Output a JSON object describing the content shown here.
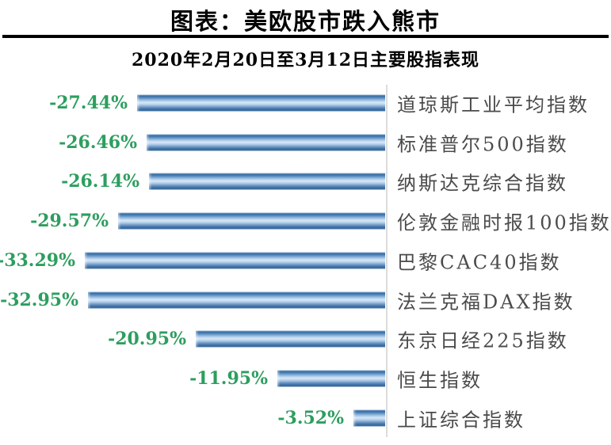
{
  "header": {
    "title": "图表：美欧股市跌入熊市",
    "subtitle": "2020年2月20日至3月12日主要股指表现"
  },
  "chart_data": {
    "type": "bar",
    "orientation": "horizontal",
    "title": "2020年2月20日至3月12日主要股指表现",
    "categories": [
      "道琼斯工业平均指数",
      "标准普尔500指数",
      "纳斯达克综合指数",
      "伦敦金融时报100指数",
      "巴黎CAC40指数",
      "法兰克福DAX指数",
      "东京日经225指数",
      "恒生指数",
      "上证综合指数"
    ],
    "values": [
      -27.44,
      -26.46,
      -26.14,
      -29.57,
      -33.29,
      -32.95,
      -20.95,
      -11.95,
      -3.52
    ],
    "value_labels": [
      "-27.44%",
      "-26.46%",
      "-26.14%",
      "-29.57%",
      "-33.29%",
      "-32.95%",
      "-20.95%",
      "-11.95%",
      "-3.52%"
    ],
    "xlim": [
      -35,
      0
    ],
    "grid": false,
    "legend": "none",
    "bars_aligned_right": true
  },
  "colors": {
    "value_label": "#2d9e5f",
    "category_label": "#4b4b4b",
    "bar_dark": "#2e6499",
    "bar_light": "#d9e8f7",
    "axis_line": "#dcdcdc",
    "title_rule": "#000000",
    "background": "#ffffff"
  }
}
